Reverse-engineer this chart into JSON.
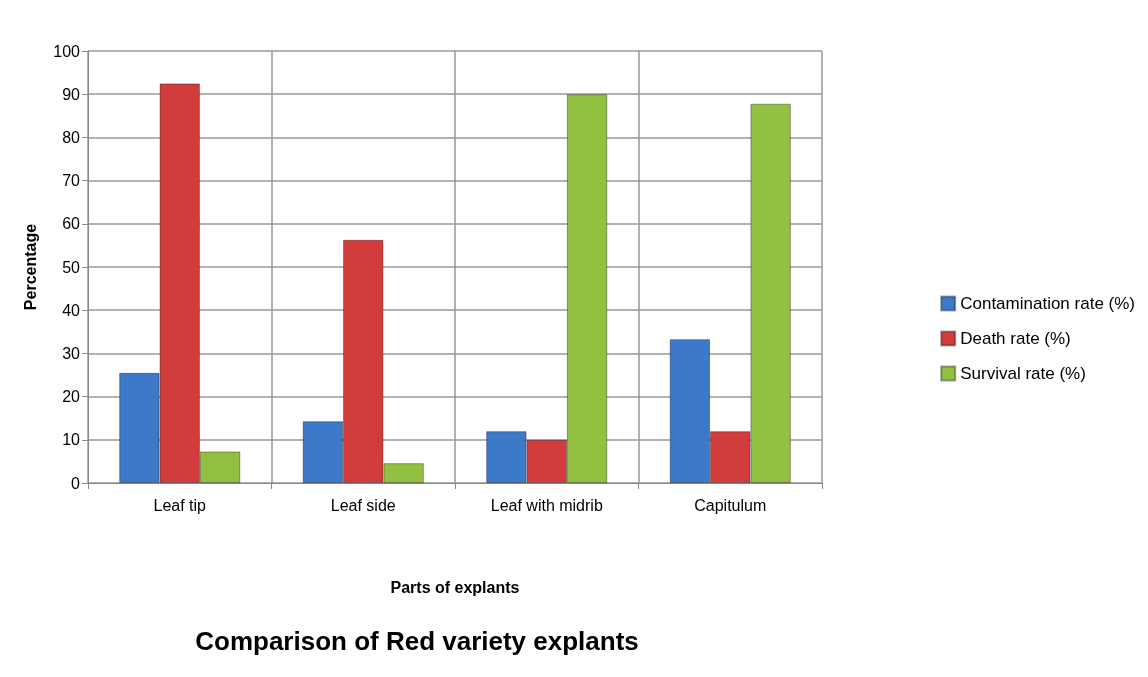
{
  "chart_data": {
    "type": "bar",
    "title": "Comparison of Red variety explants",
    "xlabel": "Parts of explants",
    "ylabel": "Percentage",
    "categories": [
      "Leaf tip",
      "Leaf side",
      "Leaf with midrib",
      "Capitulum"
    ],
    "series": [
      {
        "name": "Contamination rate (%)",
        "color": "#3c7ac9",
        "values": [
          25.5,
          14.3,
          12,
          33.3
        ]
      },
      {
        "name": "Death rate (%)",
        "color": "#d23c3c",
        "values": [
          92.5,
          56.3,
          10,
          12
        ]
      },
      {
        "name": "Survival rate (%)",
        "color": "#92c040",
        "values": [
          7.3,
          4.6,
          90,
          87.8
        ]
      }
    ],
    "ylim": [
      0,
      100
    ],
    "yticks": [
      0,
      10,
      20,
      30,
      40,
      50,
      60,
      70,
      80,
      90,
      100
    ],
    "grid": true,
    "legend": "right"
  }
}
